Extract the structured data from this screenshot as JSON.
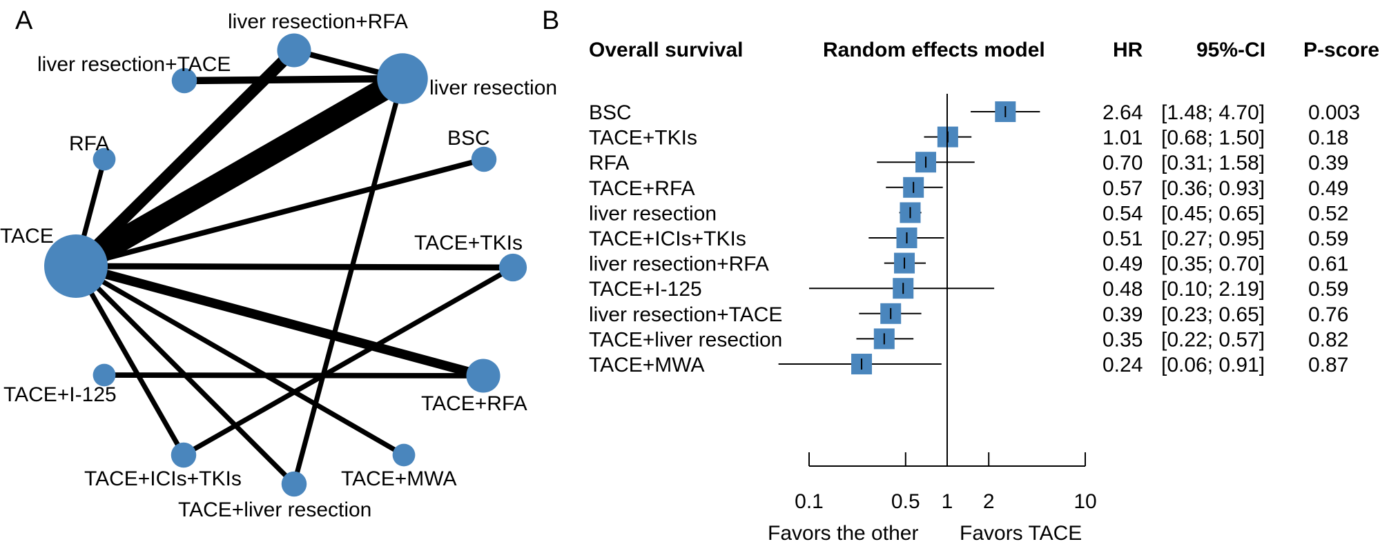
{
  "panels": {
    "a": "A",
    "b": "B"
  },
  "chart_data": [
    {
      "type": "network",
      "panel": "A",
      "nodes": [
        {
          "id": "TACE",
          "label": "TACE",
          "size": 1.0
        },
        {
          "id": "liver resection",
          "label": "liver resection",
          "size": 0.75
        },
        {
          "id": "liver resection+RFA",
          "label": "liver resection+RFA",
          "size": 0.42
        },
        {
          "id": "liver resection+TACE",
          "label": "liver resection+TACE",
          "size": 0.25
        },
        {
          "id": "RFA",
          "label": "RFA",
          "size": 0.2
        },
        {
          "id": "BSC",
          "label": "BSC",
          "size": 0.25
        },
        {
          "id": "TACE+TKIs",
          "label": "TACE+TKIs",
          "size": 0.3
        },
        {
          "id": "TACE+RFA",
          "label": "TACE+RFA",
          "size": 0.42
        },
        {
          "id": "TACE+I-125",
          "label": "TACE+I-125",
          "size": 0.2
        },
        {
          "id": "TACE+ICIs+TKIs",
          "label": "TACE+ICIs+TKIs",
          "size": 0.25
        },
        {
          "id": "TACE+MWA",
          "label": "TACE+MWA",
          "size": 0.2
        },
        {
          "id": "TACE+liver resection",
          "label": "TACE+liver resection",
          "size": 0.25
        }
      ],
      "edges": [
        {
          "from": "TACE",
          "to": "liver resection",
          "weight": 9
        },
        {
          "from": "TACE",
          "to": "liver resection+RFA",
          "weight": 4
        },
        {
          "from": "TACE",
          "to": "RFA",
          "weight": 1
        },
        {
          "from": "TACE",
          "to": "BSC",
          "weight": 1.2
        },
        {
          "from": "TACE",
          "to": "TACE+TKIs",
          "weight": 1.5
        },
        {
          "from": "TACE",
          "to": "TACE+RFA",
          "weight": 3
        },
        {
          "from": "TACE",
          "to": "TACE+ICIs+TKIs",
          "weight": 1
        },
        {
          "from": "TACE",
          "to": "TACE+MWA",
          "weight": 1
        },
        {
          "from": "TACE",
          "to": "TACE+liver resection",
          "weight": 1
        },
        {
          "from": "liver resection+TACE",
          "to": "liver resection",
          "weight": 2
        },
        {
          "from": "liver resection+RFA",
          "to": "liver resection",
          "weight": 1.3
        },
        {
          "from": "liver resection",
          "to": "TACE+liver resection",
          "weight": 1
        },
        {
          "from": "TACE+I-125",
          "to": "TACE+RFA",
          "weight": 1.2
        },
        {
          "from": "TACE+ICIs+TKIs",
          "to": "TACE+TKIs",
          "weight": 1
        }
      ]
    },
    {
      "type": "forest",
      "panel": "B",
      "title": "Overall survival",
      "model": "Random effects model",
      "columns": {
        "hr": "HR",
        "ci": "95%-CI",
        "pscore": "P-score"
      },
      "scale": "log",
      "xlim": [
        0.1,
        10
      ],
      "reference": 1,
      "xticks": [
        0.1,
        0.5,
        1,
        2,
        10
      ],
      "xtick_labels": [
        "0.1",
        "0.5",
        "1",
        "2",
        "10"
      ],
      "xlabel_left": "Favors the other",
      "xlabel_right": "Favors TACE",
      "rows": [
        {
          "label": "BSC",
          "hr": 2.64,
          "lo": 1.48,
          "hi": 4.7,
          "hr_text": "2.64",
          "ci_text": "[1.48; 4.70]",
          "p_text": "0.003"
        },
        {
          "label": "TACE+TKIs",
          "hr": 1.01,
          "lo": 0.68,
          "hi": 1.5,
          "hr_text": "1.01",
          "ci_text": "[0.68; 1.50]",
          "p_text": "0.18"
        },
        {
          "label": "RFA",
          "hr": 0.7,
          "lo": 0.31,
          "hi": 1.58,
          "hr_text": "0.70",
          "ci_text": "[0.31; 1.58]",
          "p_text": "0.39"
        },
        {
          "label": "TACE+RFA",
          "hr": 0.57,
          "lo": 0.36,
          "hi": 0.93,
          "hr_text": "0.57",
          "ci_text": "[0.36; 0.93]",
          "p_text": "0.49"
        },
        {
          "label": "liver resection",
          "hr": 0.54,
          "lo": 0.45,
          "hi": 0.65,
          "hr_text": "0.54",
          "ci_text": "[0.45; 0.65]",
          "p_text": "0.52"
        },
        {
          "label": "TACE+ICIs+TKIs",
          "hr": 0.51,
          "lo": 0.27,
          "hi": 0.95,
          "hr_text": "0.51",
          "ci_text": "[0.27; 0.95]",
          "p_text": "0.59"
        },
        {
          "label": "liver resection+RFA",
          "hr": 0.49,
          "lo": 0.35,
          "hi": 0.7,
          "hr_text": "0.49",
          "ci_text": "[0.35; 0.70]",
          "p_text": "0.61"
        },
        {
          "label": "TACE+I-125",
          "hr": 0.48,
          "lo": 0.1,
          "hi": 2.19,
          "hr_text": "0.48",
          "ci_text": "[0.10; 2.19]",
          "p_text": "0.59"
        },
        {
          "label": "liver resection+TACE",
          "hr": 0.39,
          "lo": 0.23,
          "hi": 0.65,
          "hr_text": "0.39",
          "ci_text": "[0.23; 0.65]",
          "p_text": "0.76"
        },
        {
          "label": "TACE+liver resection",
          "hr": 0.35,
          "lo": 0.22,
          "hi": 0.57,
          "hr_text": "0.35",
          "ci_text": "[0.22; 0.57]",
          "p_text": "0.82"
        },
        {
          "label": "TACE+MWA",
          "hr": 0.24,
          "lo": 0.06,
          "hi": 0.91,
          "hr_text": "0.24",
          "ci_text": "[0.06; 0.91]",
          "p_text": "0.87"
        }
      ]
    }
  ],
  "colors": {
    "node": "#4a86bd",
    "square": "#4a86bd",
    "line": "#000000"
  }
}
